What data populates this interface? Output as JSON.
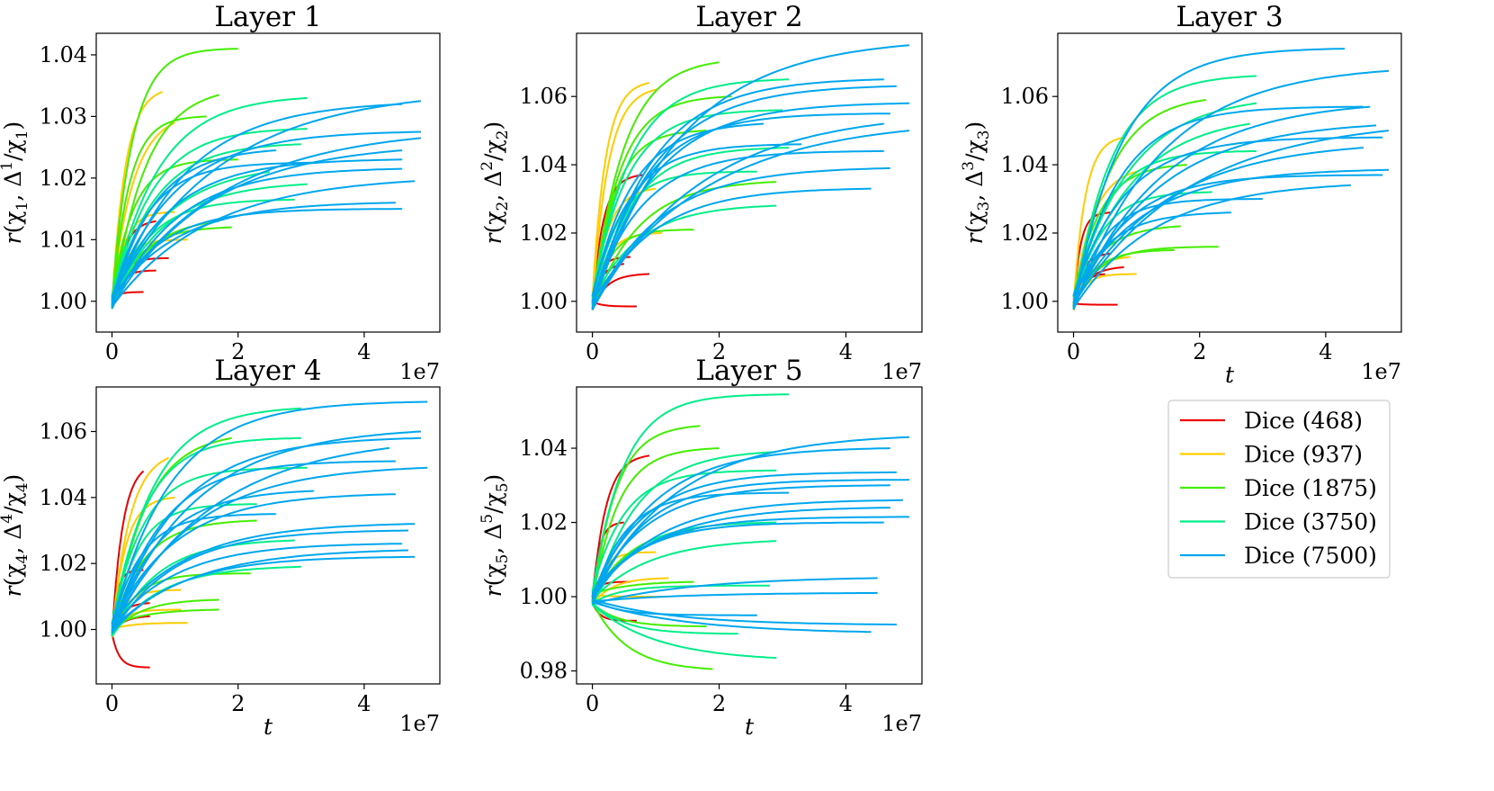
{
  "chart_data": [
    {
      "type": "line",
      "title": "Layer 1",
      "ylabel": "r(χ1, Δ1/χ1)",
      "xlabel": "",
      "x_offset_label": "1e7",
      "xlim": [
        -0.25,
        5.2
      ],
      "ylim": [
        0.995,
        1.0435
      ],
      "xticks": [
        0,
        2,
        4
      ],
      "yticks": [
        1.0,
        1.01,
        1.02,
        1.03,
        1.04
      ],
      "ytick_decimals": 2,
      "series": [
        {
          "name": "Dice (468)",
          "color": "#ee0000",
          "curves": [
            {
              "end": 0.5,
              "final": 1.0015
            },
            {
              "end": 0.7,
              "final": 1.005
            },
            {
              "end": 0.9,
              "final": 1.007
            },
            {
              "end": 0.5,
              "final": 1.009
            },
            {
              "end": 0.7,
              "final": 1.013
            }
          ]
        },
        {
          "name": "Dice (937)",
          "color": "#ffcc00",
          "curves": [
            {
              "end": 1.2,
              "final": 1.01
            },
            {
              "end": 1.0,
              "final": 1.0145
            },
            {
              "end": 1.0,
              "final": 1.029
            },
            {
              "end": 0.8,
              "final": 1.034
            }
          ]
        },
        {
          "name": "Dice (1875)",
          "color": "#44ee00",
          "curves": [
            {
              "end": 2.0,
              "final": 1.041
            },
            {
              "end": 1.7,
              "final": 1.0335
            },
            {
              "end": 1.9,
              "final": 1.012
            },
            {
              "end": 1.7,
              "final": 1.013
            },
            {
              "end": 2.0,
              "final": 1.023
            },
            {
              "end": 1.5,
              "final": 1.03
            }
          ]
        },
        {
          "name": "Dice (3750)",
          "color": "#00ee88",
          "curves": [
            {
              "end": 3.1,
              "final": 1.033
            },
            {
              "end": 3.1,
              "final": 1.028
            },
            {
              "end": 3.0,
              "final": 1.0255
            },
            {
              "end": 3.1,
              "final": 1.019
            },
            {
              "end": 2.9,
              "final": 1.0165
            },
            {
              "end": 2.5,
              "final": 1.021
            }
          ]
        },
        {
          "name": "Dice (7500)",
          "color": "#00a6ee",
          "curves": [
            {
              "end": 4.9,
              "final": 1.0325
            },
            {
              "end": 4.6,
              "final": 1.032
            },
            {
              "end": 4.9,
              "final": 1.0275
            },
            {
              "end": 4.9,
              "final": 1.0265
            },
            {
              "end": 4.6,
              "final": 1.0245
            },
            {
              "end": 4.6,
              "final": 1.023
            },
            {
              "end": 4.6,
              "final": 1.0215
            },
            {
              "end": 4.8,
              "final": 1.0195
            },
            {
              "end": 4.5,
              "final": 1.016
            },
            {
              "end": 4.6,
              "final": 1.015
            },
            {
              "end": 3.2,
              "final": 1.0225
            },
            {
              "end": 2.6,
              "final": 1.0245
            }
          ]
        }
      ]
    },
    {
      "type": "line",
      "title": "Layer 2",
      "ylabel": "r(χ2, Δ2/χ2)",
      "xlabel": "",
      "x_offset_label": "1e7",
      "xlim": [
        -0.25,
        5.2
      ],
      "ylim": [
        0.991,
        1.0785
      ],
      "xticks": [
        0,
        2,
        4
      ],
      "yticks": [
        1.0,
        1.02,
        1.04,
        1.06
      ],
      "ytick_decimals": 2,
      "series": [
        {
          "name": "Dice (468)",
          "color": "#ee0000",
          "curves": [
            {
              "end": 0.7,
              "final": 0.9985
            },
            {
              "end": 0.9,
              "final": 1.008
            },
            {
              "end": 0.5,
              "final": 1.011
            },
            {
              "end": 0.6,
              "final": 1.013
            },
            {
              "end": 0.8,
              "final": 1.037
            }
          ]
        },
        {
          "name": "Dice (937)",
          "color": "#ffcc00",
          "curves": [
            {
              "end": 1.0,
              "final": 1.062
            },
            {
              "end": 0.9,
              "final": 1.064
            },
            {
              "end": 1.1,
              "final": 1.02
            },
            {
              "end": 1.0,
              "final": 1.033
            }
          ]
        },
        {
          "name": "Dice (1875)",
          "color": "#44ee00",
          "curves": [
            {
              "end": 2.0,
              "final": 1.07
            },
            {
              "end": 1.6,
              "final": 1.021
            },
            {
              "end": 2.9,
              "final": 1.035
            },
            {
              "end": 1.8,
              "final": 1.05
            },
            {
              "end": 2.2,
              "final": 1.06
            }
          ]
        },
        {
          "name": "Dice (3750)",
          "color": "#00ee88",
          "curves": [
            {
              "end": 3.1,
              "final": 1.065
            },
            {
              "end": 3.0,
              "final": 1.056
            },
            {
              "end": 2.9,
              "final": 1.028
            },
            {
              "end": 3.1,
              "final": 1.045
            },
            {
              "end": 2.6,
              "final": 1.038
            }
          ]
        },
        {
          "name": "Dice (7500)",
          "color": "#00a6ee",
          "curves": [
            {
              "end": 5.0,
              "final": 1.075
            },
            {
              "end": 4.6,
              "final": 1.065
            },
            {
              "end": 4.8,
              "final": 1.063
            },
            {
              "end": 5.0,
              "final": 1.058
            },
            {
              "end": 4.7,
              "final": 1.055
            },
            {
              "end": 4.6,
              "final": 1.052
            },
            {
              "end": 5.0,
              "final": 1.05
            },
            {
              "end": 4.6,
              "final": 1.044
            },
            {
              "end": 4.7,
              "final": 1.039
            },
            {
              "end": 4.4,
              "final": 1.033
            },
            {
              "end": 3.3,
              "final": 1.046
            },
            {
              "end": 2.7,
              "final": 1.052
            }
          ]
        }
      ]
    },
    {
      "type": "line",
      "title": "Layer 3",
      "ylabel": "r(χ3, Δ3/χ3)",
      "xlabel": "t",
      "x_offset_label": "1e7",
      "xlim": [
        -0.25,
        5.2
      ],
      "ylim": [
        0.991,
        1.0785
      ],
      "xticks": [
        0,
        2,
        4
      ],
      "yticks": [
        1.0,
        1.02,
        1.04,
        1.06
      ],
      "ytick_decimals": 2,
      "series": [
        {
          "name": "Dice (468)",
          "color": "#ee0000",
          "curves": [
            {
              "end": 0.7,
              "final": 0.999
            },
            {
              "end": 0.5,
              "final": 1.008
            },
            {
              "end": 0.8,
              "final": 1.01
            },
            {
              "end": 0.6,
              "final": 1.014
            },
            {
              "end": 0.6,
              "final": 1.026
            }
          ]
        },
        {
          "name": "Dice (937)",
          "color": "#ffcc00",
          "curves": [
            {
              "end": 1.0,
              "final": 1.008
            },
            {
              "end": 0.9,
              "final": 1.013
            },
            {
              "end": 1.0,
              "final": 1.038
            },
            {
              "end": 0.8,
              "final": 1.048
            }
          ]
        },
        {
          "name": "Dice (1875)",
          "color": "#44ee00",
          "curves": [
            {
              "end": 2.3,
              "final": 1.016
            },
            {
              "end": 1.6,
              "final": 1.015
            },
            {
              "end": 1.7,
              "final": 1.022
            },
            {
              "end": 2.1,
              "final": 1.059
            },
            {
              "end": 1.8,
              "final": 1.04
            }
          ]
        },
        {
          "name": "Dice (3750)",
          "color": "#00ee88",
          "curves": [
            {
              "end": 2.9,
              "final": 1.066
            },
            {
              "end": 2.9,
              "final": 1.058
            },
            {
              "end": 2.8,
              "final": 1.052
            },
            {
              "end": 2.9,
              "final": 1.044
            },
            {
              "end": 2.2,
              "final": 1.032
            }
          ]
        },
        {
          "name": "Dice (7500)",
          "color": "#00a6ee",
          "curves": [
            {
              "end": 4.3,
              "final": 1.074
            },
            {
              "end": 5.0,
              "final": 1.0675
            },
            {
              "end": 4.7,
              "final": 1.057
            },
            {
              "end": 4.6,
              "final": 1.057
            },
            {
              "end": 4.8,
              "final": 1.0515
            },
            {
              "end": 5.0,
              "final": 1.05
            },
            {
              "end": 4.9,
              "final": 1.048
            },
            {
              "end": 4.6,
              "final": 1.045
            },
            {
              "end": 5.0,
              "final": 1.0385
            },
            {
              "end": 4.9,
              "final": 1.037
            },
            {
              "end": 4.4,
              "final": 1.034
            },
            {
              "end": 3.0,
              "final": 1.03
            },
            {
              "end": 2.5,
              "final": 1.026
            }
          ]
        }
      ]
    },
    {
      "type": "line",
      "title": "Layer 4",
      "ylabel": "r(χ4, Δ4/χ4)",
      "xlabel": "t",
      "x_offset_label": "1e7",
      "xlim": [
        -0.25,
        5.2
      ],
      "ylim": [
        0.9835,
        1.0735
      ],
      "xticks": [
        0,
        2,
        4
      ],
      "yticks": [
        1.0,
        1.02,
        1.04,
        1.06
      ],
      "ytick_decimals": 2,
      "series": [
        {
          "name": "Dice (468)",
          "color": "#ee0000",
          "curves": [
            {
              "end": 0.6,
              "final": 0.9885,
              "shape": "drop"
            },
            {
              "end": 0.6,
              "final": 1.004
            },
            {
              "end": 0.6,
              "final": 1.008
            },
            {
              "end": 0.5,
              "final": 1.018
            },
            {
              "end": 0.5,
              "final": 1.048
            }
          ]
        },
        {
          "name": "Dice (937)",
          "color": "#ffcc00",
          "curves": [
            {
              "end": 1.2,
              "final": 1.002
            },
            {
              "end": 1.1,
              "final": 1.006
            },
            {
              "end": 1.1,
              "final": 1.012
            },
            {
              "end": 1.0,
              "final": 1.04
            },
            {
              "end": 0.9,
              "final": 1.052
            }
          ]
        },
        {
          "name": "Dice (1875)",
          "color": "#44ee00",
          "curves": [
            {
              "end": 1.7,
              "final": 1.009
            },
            {
              "end": 1.7,
              "final": 1.006
            },
            {
              "end": 2.2,
              "final": 1.017
            },
            {
              "end": 1.9,
              "final": 1.058
            },
            {
              "end": 2.3,
              "final": 1.033
            }
          ]
        },
        {
          "name": "Dice (3750)",
          "color": "#00ee88",
          "curves": [
            {
              "end": 3.0,
              "final": 1.067
            },
            {
              "end": 3.0,
              "final": 1.058
            },
            {
              "end": 3.1,
              "final": 1.049
            },
            {
              "end": 3.0,
              "final": 1.019
            },
            {
              "end": 2.9,
              "final": 1.027
            },
            {
              "end": 2.3,
              "final": 1.038
            }
          ]
        },
        {
          "name": "Dice (7500)",
          "color": "#00a6ee",
          "curves": [
            {
              "end": 5.0,
              "final": 1.069
            },
            {
              "end": 4.9,
              "final": 1.06
            },
            {
              "end": 4.9,
              "final": 1.058
            },
            {
              "end": 4.4,
              "final": 1.055
            },
            {
              "end": 4.5,
              "final": 1.051
            },
            {
              "end": 5.0,
              "final": 1.049
            },
            {
              "end": 4.5,
              "final": 1.041
            },
            {
              "end": 4.8,
              "final": 1.032
            },
            {
              "end": 4.7,
              "final": 1.03
            },
            {
              "end": 4.6,
              "final": 1.026
            },
            {
              "end": 4.7,
              "final": 1.024
            },
            {
              "end": 4.8,
              "final": 1.022
            },
            {
              "end": 3.2,
              "final": 1.042
            },
            {
              "end": 2.6,
              "final": 1.035
            }
          ]
        }
      ]
    },
    {
      "type": "line",
      "title": "Layer 5",
      "ylabel": "r(χ5, Δ5/χ5)",
      "xlabel": "t",
      "x_offset_label": "1e7",
      "xlim": [
        -0.25,
        5.2
      ],
      "ylim": [
        0.9765,
        1.0565
      ],
      "xticks": [
        0,
        2,
        4
      ],
      "yticks": [
        0.98,
        1.0,
        1.02,
        1.04
      ],
      "ytick_decimals": 2,
      "series": [
        {
          "name": "Dice (468)",
          "color": "#ee0000",
          "curves": [
            {
              "end": 0.7,
              "final": 0.9935
            },
            {
              "end": 0.6,
              "final": 1.004
            },
            {
              "end": 0.9,
              "final": 1.038
            },
            {
              "end": 0.5,
              "final": 1.02
            }
          ]
        },
        {
          "name": "Dice (937)",
          "color": "#ffcc00",
          "curves": [
            {
              "end": 1.2,
              "final": 1.005
            },
            {
              "end": 1.0,
              "final": 1.012
            },
            {
              "end": 1.1,
              "final": 1.0
            }
          ]
        },
        {
          "name": "Dice (1875)",
          "color": "#44ee00",
          "curves": [
            {
              "end": 1.9,
              "final": 0.9805
            },
            {
              "end": 2.0,
              "final": 1.04
            },
            {
              "end": 1.7,
              "final": 1.046
            },
            {
              "end": 1.6,
              "final": 1.018
            },
            {
              "end": 1.6,
              "final": 1.004
            },
            {
              "end": 1.8,
              "final": 0.992
            }
          ]
        },
        {
          "name": "Dice (3750)",
          "color": "#00ee88",
          "curves": [
            {
              "end": 3.1,
              "final": 1.0545
            },
            {
              "end": 2.9,
              "final": 1.039
            },
            {
              "end": 2.9,
              "final": 1.034
            },
            {
              "end": 2.9,
              "final": 1.02
            },
            {
              "end": 2.9,
              "final": 1.015
            },
            {
              "end": 2.9,
              "final": 0.9835
            },
            {
              "end": 2.8,
              "final": 1.003
            },
            {
              "end": 2.3,
              "final": 0.99
            }
          ]
        },
        {
          "name": "Dice (7500)",
          "color": "#00a6ee",
          "curves": [
            {
              "end": 5.0,
              "final": 1.043
            },
            {
              "end": 4.7,
              "final": 1.04
            },
            {
              "end": 4.8,
              "final": 1.0335
            },
            {
              "end": 5.0,
              "final": 1.0315
            },
            {
              "end": 4.7,
              "final": 1.03
            },
            {
              "end": 4.9,
              "final": 1.026
            },
            {
              "end": 4.7,
              "final": 1.024
            },
            {
              "end": 5.0,
              "final": 1.0215
            },
            {
              "end": 4.6,
              "final": 1.02
            },
            {
              "end": 4.5,
              "final": 1.005
            },
            {
              "end": 4.5,
              "final": 1.001
            },
            {
              "end": 4.8,
              "final": 0.9925
            },
            {
              "end": 4.4,
              "final": 0.9905
            },
            {
              "end": 3.1,
              "final": 1.028
            },
            {
              "end": 2.6,
              "final": 0.995
            }
          ]
        }
      ]
    }
  ],
  "legend": {
    "placement": "bottom-right",
    "entries": [
      {
        "label": "Dice (468)",
        "color": "#ee0000"
      },
      {
        "label": "Dice (937)",
        "color": "#ffcc00"
      },
      {
        "label": "Dice (1875)",
        "color": "#44ee00"
      },
      {
        "label": "Dice (3750)",
        "color": "#00ee88"
      },
      {
        "label": "Dice (7500)",
        "color": "#00a6ee"
      }
    ]
  }
}
